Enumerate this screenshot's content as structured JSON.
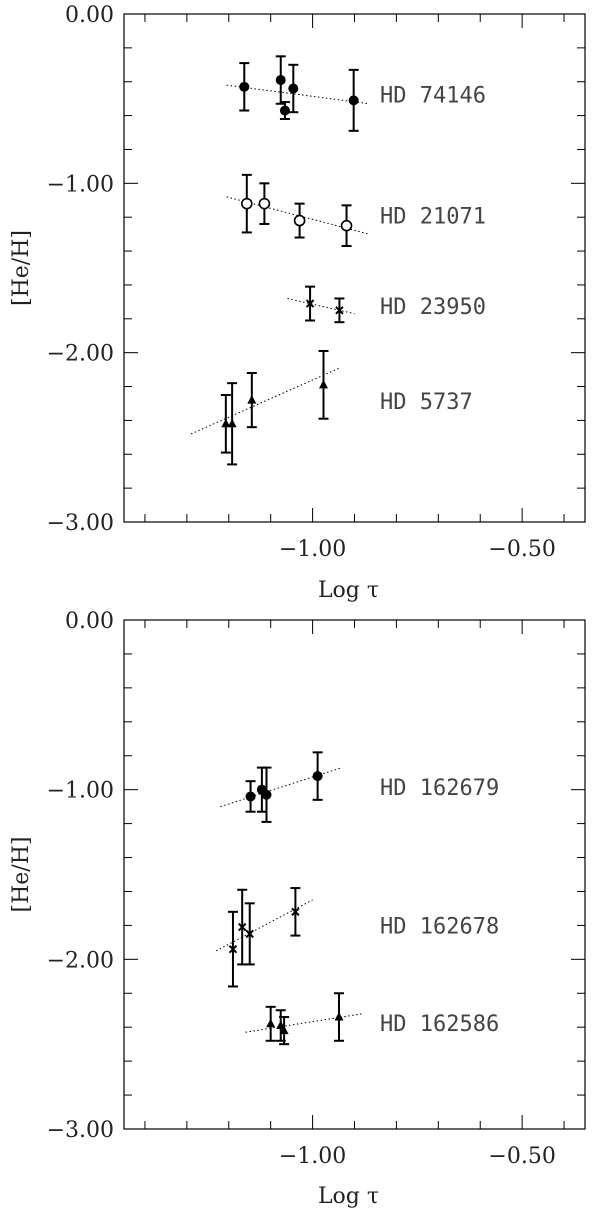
{
  "chart_data": [
    {
      "type": "scatter",
      "xlabel": "Log τ",
      "ylabel": "[He/H]",
      "xlim": [
        -1.45,
        -0.35
      ],
      "ylim": [
        -3.0,
        0.0
      ],
      "xticks_labeled": [
        -1.0,
        -0.5
      ],
      "xtick_labels": [
        "−1.00",
        "−0.50"
      ],
      "yticks_labeled": [
        0.0,
        -1.0,
        -2.0,
        -3.0
      ],
      "ytick_labels": [
        "0.00",
        "−1.00",
        "−2.00",
        "−3.00"
      ],
      "grid": false,
      "series": [
        {
          "name": "HD 74146",
          "marker": "filled-circle",
          "points": [
            {
              "x": -1.163,
              "y": -0.43,
              "err": 0.14
            },
            {
              "x": -1.076,
              "y": -0.39,
              "err": 0.14
            },
            {
              "x": -1.066,
              "y": -0.57,
              "err": 0.05
            },
            {
              "x": -1.046,
              "y": -0.44,
              "err": 0.14
            },
            {
              "x": -0.902,
              "y": -0.51,
              "err": 0.18
            }
          ],
          "fit": [
            [
              -1.205,
              -0.42
            ],
            [
              -0.865,
              -0.53
            ]
          ]
        },
        {
          "name": "HD 21071",
          "marker": "open-circle",
          "points": [
            {
              "x": -1.157,
              "y": -1.12,
              "err": 0.17
            },
            {
              "x": -1.115,
              "y": -1.12,
              "err": 0.12
            },
            {
              "x": -1.031,
              "y": -1.22,
              "err": 0.1
            },
            {
              "x": -0.919,
              "y": -1.25,
              "err": 0.12
            }
          ],
          "fit": [
            [
              -1.205,
              -1.08
            ],
            [
              -0.865,
              -1.3
            ]
          ]
        },
        {
          "name": "HD 23950",
          "marker": "cross",
          "points": [
            {
              "x": -1.006,
              "y": -1.71,
              "err": 0.1
            },
            {
              "x": -0.936,
              "y": -1.75,
              "err": 0.07
            }
          ],
          "fit": [
            [
              -1.06,
              -1.68
            ],
            [
              -0.9,
              -1.77
            ]
          ]
        },
        {
          "name": "HD 5737",
          "marker": "triangle",
          "points": [
            {
              "x": -1.207,
              "y": -2.42,
              "err": 0.17
            },
            {
              "x": -1.192,
              "y": -2.42,
              "err": 0.24
            },
            {
              "x": -1.145,
              "y": -2.28,
              "err": 0.16
            },
            {
              "x": -0.974,
              "y": -2.19,
              "err": 0.2
            }
          ],
          "fit": [
            [
              -1.29,
              -2.48
            ],
            [
              -0.935,
              -2.09
            ]
          ]
        }
      ]
    },
    {
      "type": "scatter",
      "xlabel": "Log τ",
      "ylabel": "[He/H]",
      "xlim": [
        -1.45,
        -0.35
      ],
      "ylim": [
        -3.0,
        0.0
      ],
      "xticks_labeled": [
        -1.0,
        -0.5
      ],
      "xtick_labels": [
        "−1.00",
        "−0.50"
      ],
      "yticks_labeled": [
        0.0,
        -1.0,
        -2.0,
        -3.0
      ],
      "ytick_labels": [
        "0.00",
        "−1.00",
        "−2.00",
        "−3.00"
      ],
      "grid": false,
      "series": [
        {
          "name": "HD 162679",
          "marker": "filled-circle",
          "points": [
            {
              "x": -1.148,
              "y": -1.04,
              "err": 0.09
            },
            {
              "x": -1.121,
              "y": -1.0,
              "err": 0.13
            },
            {
              "x": -1.11,
              "y": -1.03,
              "err": 0.16
            },
            {
              "x": -0.988,
              "y": -0.92,
              "err": 0.14
            }
          ],
          "fit": [
            [
              -1.22,
              -1.1
            ],
            [
              -0.93,
              -0.87
            ]
          ]
        },
        {
          "name": "HD 162678",
          "marker": "cross",
          "points": [
            {
              "x": -1.19,
              "y": -1.94,
              "err": 0.22
            },
            {
              "x": -1.168,
              "y": -1.81,
              "err": 0.22
            },
            {
              "x": -1.15,
              "y": -1.85,
              "err": 0.18
            },
            {
              "x": -1.041,
              "y": -1.72,
              "err": 0.14
            }
          ],
          "fit": [
            [
              -1.23,
              -1.95
            ],
            [
              -1.0,
              -1.65
            ]
          ]
        },
        {
          "name": "HD 162586",
          "marker": "triangle",
          "points": [
            {
              "x": -1.1,
              "y": -2.38,
              "err": 0.1
            },
            {
              "x": -1.076,
              "y": -2.39,
              "err": 0.09
            },
            {
              "x": -1.068,
              "y": -2.42,
              "err": 0.08
            },
            {
              "x": -0.937,
              "y": -2.34,
              "err": 0.14
            }
          ],
          "fit": [
            [
              -1.16,
              -2.43
            ],
            [
              -0.88,
              -2.32
            ]
          ]
        }
      ]
    }
  ]
}
